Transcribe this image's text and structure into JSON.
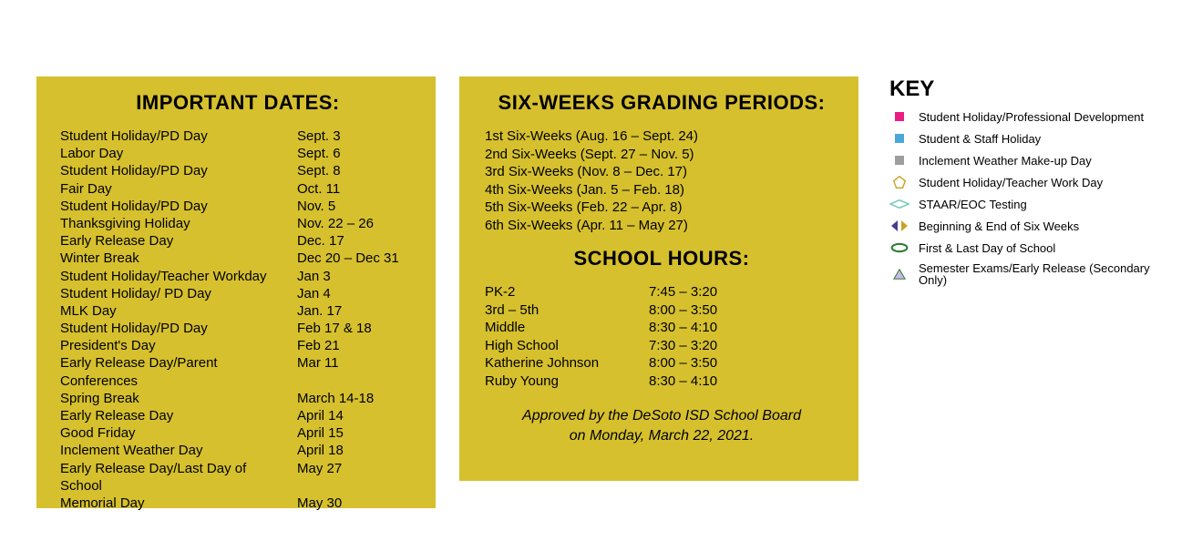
{
  "colors": {
    "panel_bg": "#d6c02d",
    "page_bg": "#ffffff",
    "text": "#000000",
    "key_pink": "#e91e82",
    "key_blue": "#4aa8d8",
    "key_gray": "#9e9e9e",
    "key_gold": "#c9a227",
    "key_teal": "#6fc7b7",
    "key_chev_left": "#4b3a8f",
    "key_chev_right": "#c9a227",
    "key_green": "#2e7d32",
    "key_tri_fill": "#cbb7e8",
    "key_tri_stroke": "#2e7d32"
  },
  "fonts": {
    "heading_family": "Arial Black",
    "body_family": "Arial",
    "heading_size_pt": 17,
    "body_size_pt": 11,
    "key_size_pt": 10
  },
  "importantDates": {
    "title": "IMPORTANT DATES:",
    "rows": [
      {
        "label": "Student Holiday/PD Day",
        "date": "Sept. 3"
      },
      {
        "label": "Labor Day",
        "date": "Sept. 6"
      },
      {
        "label": "Student Holiday/PD Day",
        "date": "Sept. 8"
      },
      {
        "label": "Fair Day",
        "date": "Oct. 11"
      },
      {
        "label": "Student Holiday/PD Day",
        "date": "Nov. 5"
      },
      {
        "label": "Thanksgiving Holiday",
        "date": "Nov. 22 – 26"
      },
      {
        "label": "Early Release Day",
        "date": "Dec. 17"
      },
      {
        "label": "Winter Break",
        "date": "Dec 20 – Dec 31"
      },
      {
        "label": "Student Holiday/Teacher Workday",
        "date": "Jan 3"
      },
      {
        "label": "Student Holiday/ PD Day",
        "date": "Jan 4"
      },
      {
        "label": "MLK Day",
        "date": "Jan. 17"
      },
      {
        "label": "Student Holiday/PD Day",
        "date": "Feb 17 & 18"
      },
      {
        "label": "President's Day",
        "date": "Feb 21"
      },
      {
        "label": "Early Release Day/Parent Conferences",
        "date": "Mar 11"
      },
      {
        "label": "Spring Break",
        "date": "March 14-18"
      },
      {
        "label": "Early Release Day",
        "date": "April 14"
      },
      {
        "label": "Good Friday",
        "date": "April 15"
      },
      {
        "label": "Inclement Weather Day",
        "date": "April 18"
      },
      {
        "label": "Early Release Day/Last Day of School",
        "date": "May 27"
      },
      {
        "label": "Memorial Day",
        "date": "May 30"
      }
    ]
  },
  "gradingPeriods": {
    "title": "SIX-WEEKS GRADING PERIODS:",
    "rows": [
      "1st Six-Weeks (Aug. 16 – Sept. 24)",
      "2nd Six-Weeks (Sept. 27 – Nov. 5)",
      "3rd Six-Weeks (Nov. 8 – Dec. 17)",
      "4th Six-Weeks (Jan. 5 – Feb. 18)",
      "5th Six-Weeks (Feb. 22 – Apr. 8)",
      "6th Six-Weeks (Apr. 11 – May 27)"
    ]
  },
  "schoolHours": {
    "title": "SCHOOL HOURS:",
    "rows": [
      {
        "level": "PK-2",
        "hours": "7:45 – 3:20"
      },
      {
        "level": "3rd – 5th",
        "hours": "8:00 – 3:50"
      },
      {
        "level": "Middle",
        "hours": "8:30 – 4:10"
      },
      {
        "level": "High School",
        "hours": "7:30 – 3:20"
      },
      {
        "level": "Katherine Johnson",
        "hours": "8:00 – 3:50"
      },
      {
        "level": "Ruby Young",
        "hours": "8:30 – 4:10"
      }
    ],
    "approved_line1": "Approved by the DeSoto ISD School Board",
    "approved_line2": "on Monday, March 22, 2021."
  },
  "key": {
    "title": "KEY",
    "items": [
      {
        "icon": "pink-square",
        "label": "Student Holiday/Professional Development"
      },
      {
        "icon": "blue-square",
        "label": "Student & Staff Holiday"
      },
      {
        "icon": "gray-square",
        "label": "Inclement Weather Make-up Day"
      },
      {
        "icon": "gold-pentagon",
        "label": "Student Holiday/Teacher Work Day"
      },
      {
        "icon": "teal-diamond",
        "label": "STAAR/EOC Testing"
      },
      {
        "icon": "chevrons",
        "label": "Beginning & End of Six Weeks"
      },
      {
        "icon": "green-oval",
        "label": "First & Last Day of School"
      },
      {
        "icon": "triangle",
        "label": "Semester Exams/Early Release (Secondary Only)"
      }
    ]
  }
}
